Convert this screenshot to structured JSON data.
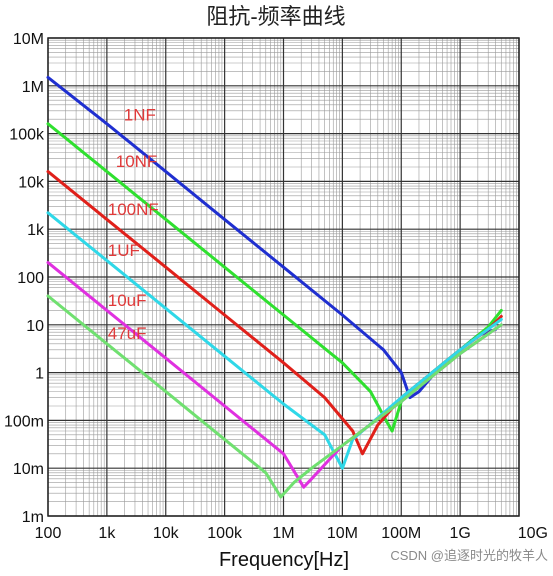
{
  "chart_data": {
    "type": "line",
    "title": "阻抗-频率曲线",
    "xlabel": "Frequency[Hz]",
    "ylabel": "",
    "xscale": "log",
    "yscale": "log",
    "xlim": [
      100,
      10000000000
    ],
    "ylim": [
      0.001,
      10000000
    ],
    "grid": true,
    "x_ticks": [
      {
        "value": 100,
        "label": "100"
      },
      {
        "value": 1000,
        "label": "1k"
      },
      {
        "value": 10000,
        "label": "10k"
      },
      {
        "value": 100000,
        "label": "100k"
      },
      {
        "value": 1000000,
        "label": "1M"
      },
      {
        "value": 10000000,
        "label": "10M"
      },
      {
        "value": 100000000,
        "label": "100M"
      },
      {
        "value": 1000000000,
        "label": "1G"
      },
      {
        "value": 10000000000,
        "label": "10G"
      }
    ],
    "y_ticks": [
      {
        "value": 10000000,
        "label": "10M"
      },
      {
        "value": 1000000,
        "label": "1M"
      },
      {
        "value": 100000,
        "label": "100k"
      },
      {
        "value": 10000,
        "label": "10k"
      },
      {
        "value": 1000,
        "label": "1k"
      },
      {
        "value": 100,
        "label": "100"
      },
      {
        "value": 10,
        "label": "10"
      },
      {
        "value": 1,
        "label": "1"
      },
      {
        "value": 0.1,
        "label": "100m"
      },
      {
        "value": 0.01,
        "label": "10m"
      },
      {
        "value": 0.001,
        "label": "1m"
      }
    ],
    "series": [
      {
        "name": "1NF",
        "color": "#1f2fd0",
        "points": [
          [
            100,
            1500000
          ],
          [
            1000,
            160000
          ],
          [
            10000,
            16000
          ],
          [
            100000,
            1600
          ],
          [
            1000000,
            160
          ],
          [
            10000000,
            16
          ],
          [
            50000000,
            3
          ],
          [
            100000000,
            1
          ],
          [
            140000000,
            0.3
          ],
          [
            200000000,
            0.4
          ],
          [
            500000000,
            1.5
          ],
          [
            1000000000,
            3
          ],
          [
            2000000000,
            6
          ],
          [
            4000000000,
            8
          ]
        ]
      },
      {
        "name": "10NF",
        "color": "#2fe02f",
        "points": [
          [
            100,
            160000
          ],
          [
            1000,
            16000
          ],
          [
            10000,
            1600
          ],
          [
            100000,
            160
          ],
          [
            1000000,
            16
          ],
          [
            10000000,
            1.6
          ],
          [
            30000000,
            0.4
          ],
          [
            55000000,
            0.1
          ],
          [
            70000000,
            0.06
          ],
          [
            100000000,
            0.25
          ],
          [
            300000000,
            0.9
          ],
          [
            1000000000,
            3
          ],
          [
            3000000000,
            9
          ],
          [
            5000000000,
            20
          ]
        ]
      },
      {
        "name": "100NF",
        "color": "#e0201a",
        "points": [
          [
            100,
            16000
          ],
          [
            1000,
            1600
          ],
          [
            10000,
            160
          ],
          [
            100000,
            16
          ],
          [
            1000000,
            1.6
          ],
          [
            5000000,
            0.3
          ],
          [
            15000000,
            0.06
          ],
          [
            22000000,
            0.02
          ],
          [
            40000000,
            0.08
          ],
          [
            100000000,
            0.3
          ],
          [
            1000000000,
            3
          ],
          [
            3000000000,
            8
          ],
          [
            5000000000,
            15
          ]
        ]
      },
      {
        "name": "1UF",
        "color": "#2fd8e8",
        "points": [
          [
            100,
            2200
          ],
          [
            1000,
            220
          ],
          [
            10000,
            22
          ],
          [
            100000,
            2.2
          ],
          [
            1000000,
            0.22
          ],
          [
            5000000,
            0.05
          ],
          [
            10000000,
            0.01
          ],
          [
            15000000,
            0.04
          ],
          [
            100000000,
            0.3
          ],
          [
            1000000000,
            3
          ],
          [
            5000000000,
            13
          ]
        ]
      },
      {
        "name": "10uF",
        "color": "#e030e0",
        "points": [
          [
            100,
            200
          ],
          [
            1000,
            20
          ],
          [
            10000,
            2
          ],
          [
            100000,
            0.2
          ],
          [
            1000000,
            0.02
          ],
          [
            2200000,
            0.004
          ],
          [
            3000000,
            0.006
          ],
          [
            10000000,
            0.03
          ],
          [
            100000000,
            0.25
          ],
          [
            1000000000,
            2.5
          ],
          [
            5000000000,
            10
          ]
        ]
      },
      {
        "name": "47uF",
        "color": "#70e070",
        "points": [
          [
            100,
            40
          ],
          [
            1000,
            4
          ],
          [
            10000,
            0.4
          ],
          [
            100000,
            0.04
          ],
          [
            500000,
            0.008
          ],
          [
            900000,
            0.0025
          ],
          [
            1500000,
            0.005
          ],
          [
            3000000,
            0.01
          ],
          [
            10000000,
            0.03
          ],
          [
            100000000,
            0.25
          ],
          [
            1000000000,
            2.5
          ],
          [
            5000000000,
            10
          ]
        ]
      }
    ]
  },
  "watermark": "CSDN @追逐时光的牧羊人"
}
